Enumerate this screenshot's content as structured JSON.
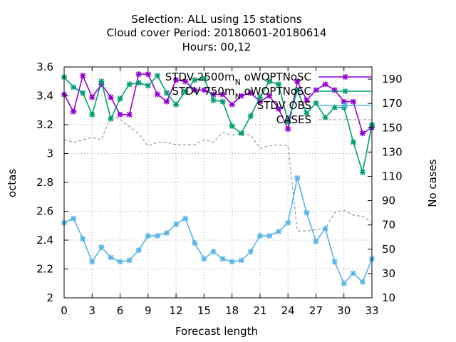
{
  "chart_data": {
    "type": "line",
    "title_lines": [
      "Selection: ALL using    15 stations",
      "Cloud cover   Period: 20180601-20180614",
      "Hours:  00,12"
    ],
    "xlabel": "Forecast length",
    "ylabel": "octas",
    "y2label": "No cases",
    "xlim": [
      0,
      33
    ],
    "ylim": [
      2.0,
      3.6
    ],
    "y2lim": [
      10,
      200
    ],
    "xticks": [
      0,
      3,
      6,
      9,
      12,
      15,
      18,
      21,
      24,
      27,
      30,
      33
    ],
    "yticks": [
      2.0,
      2.2,
      2.4,
      2.6,
      2.8,
      3.0,
      3.2,
      3.4,
      3.6
    ],
    "ytick_labels": [
      "2",
      "2.2",
      "2.4",
      "2.6",
      "2.8",
      "3",
      "3.2",
      "3.4",
      "3.6"
    ],
    "y2ticks": [
      10,
      30,
      50,
      70,
      90,
      110,
      130,
      150,
      170,
      190
    ],
    "grid": true,
    "legend_position": "top-right",
    "x": [
      0,
      1,
      2,
      3,
      4,
      5,
      6,
      7,
      8,
      9,
      10,
      11,
      12,
      13,
      14,
      15,
      16,
      17,
      18,
      19,
      20,
      21,
      22,
      23,
      24,
      25,
      26,
      27,
      28,
      29,
      30,
      31,
      32,
      33
    ],
    "series": [
      {
        "name": "STDV 2500m",
        "name_sub": "N",
        "name_suffix": " oWOPTNoSC",
        "color": "#9400d3",
        "marker": "star",
        "axis": "y",
        "values": [
          3.41,
          3.29,
          3.54,
          3.39,
          3.48,
          3.39,
          3.27,
          3.27,
          3.55,
          3.55,
          3.41,
          3.36,
          3.51,
          3.5,
          3.44,
          3.44,
          3.41,
          3.41,
          3.34,
          3.4,
          3.42,
          3.36,
          3.4,
          3.31,
          3.17,
          3.5,
          3.37,
          3.44,
          3.48,
          3.44,
          3.36,
          3.36,
          3.14,
          3.18
        ]
      },
      {
        "name": "STDV 750m",
        "name_sub": "N",
        "name_suffix": " oWOPTNoSC",
        "color": "#009e73",
        "marker": "star",
        "axis": "y",
        "values": [
          3.53,
          3.46,
          3.42,
          3.27,
          3.5,
          3.24,
          3.38,
          3.48,
          3.49,
          3.47,
          3.54,
          3.42,
          3.34,
          3.43,
          3.51,
          3.52,
          3.37,
          3.36,
          3.19,
          3.14,
          3.26,
          3.39,
          3.5,
          3.48,
          3.22,
          3.44,
          3.28,
          3.35,
          3.25,
          3.32,
          3.32,
          3.08,
          2.87,
          3.2
        ]
      },
      {
        "name": "STDV OBS",
        "color": "#56b4e9",
        "marker": "star",
        "axis": "y",
        "values": [
          2.52,
          2.55,
          2.41,
          2.25,
          2.35,
          2.28,
          2.25,
          2.26,
          2.33,
          2.43,
          2.43,
          2.45,
          2.51,
          2.55,
          2.38,
          2.27,
          2.32,
          2.27,
          2.25,
          2.26,
          2.32,
          2.43,
          2.43,
          2.46,
          2.52,
          2.83,
          2.59,
          2.39,
          2.48,
          2.25,
          2.1,
          2.17,
          2.11,
          2.27
        ]
      },
      {
        "name": "CASES",
        "color": "#a0a0a0",
        "dashed": true,
        "axis": "y2",
        "values": [
          140,
          138,
          140,
          142,
          140,
          160,
          157,
          151,
          145,
          135,
          138,
          138,
          136,
          136,
          136,
          140,
          138,
          146,
          144,
          145,
          144,
          133,
          135,
          136,
          135,
          65,
          65,
          66,
          67,
          80,
          82,
          78,
          77,
          72
        ]
      }
    ]
  }
}
